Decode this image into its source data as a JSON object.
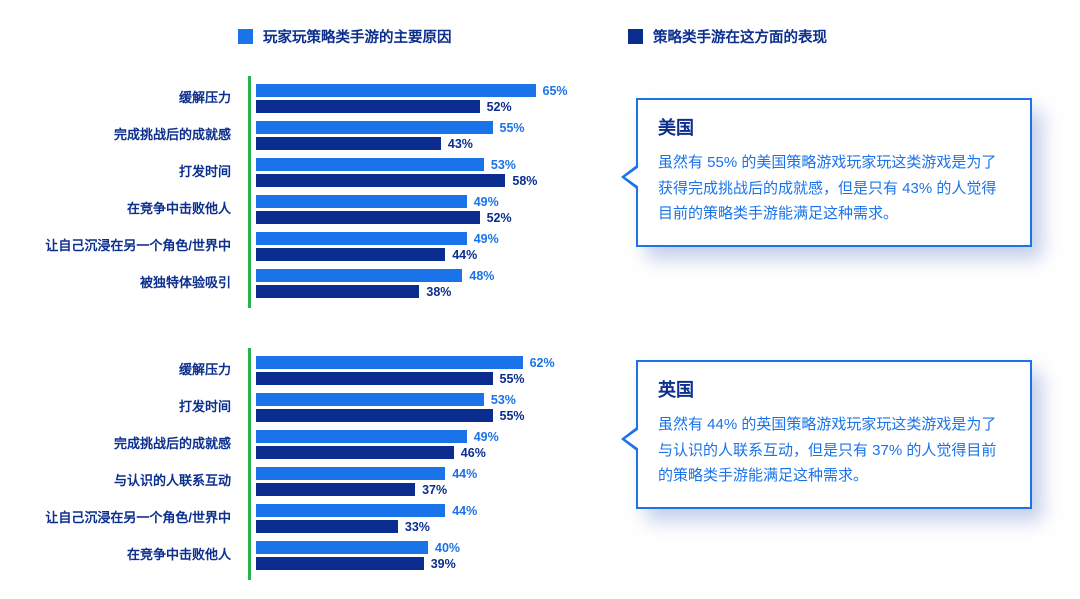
{
  "colors": {
    "reason_blue": "#1a73e8",
    "performance_blue": "#0b2d8f",
    "axis_green": "#27b24a"
  },
  "legend": {
    "items": [
      {
        "label": "玩家玩策略类手游的主要原因",
        "color": "#1a73e8"
      },
      {
        "label": "策略类手游在这方面的表现",
        "color": "#0b2d8f"
      }
    ]
  },
  "chart_data": [
    {
      "type": "bar",
      "region": "美国",
      "orientation": "horizontal",
      "categories": [
        "缓解压力",
        "完成挑战后的成就感",
        "打发时间",
        "在竞争中击败他人",
        "让自己沉浸在另一个角色/世界中",
        "被独特体验吸引"
      ],
      "series": [
        {
          "name": "玩家玩策略类手游的主要原因",
          "color": "#1a73e8",
          "values": [
            65,
            55,
            53,
            49,
            49,
            48
          ]
        },
        {
          "name": "策略类手游在这方面的表现",
          "color": "#0b2d8f",
          "values": [
            52,
            43,
            58,
            52,
            44,
            38
          ]
        }
      ],
      "xlim": [
        0,
        70
      ],
      "value_suffix": "%",
      "grid": false,
      "legend_position": "top"
    },
    {
      "type": "bar",
      "region": "英国",
      "orientation": "horizontal",
      "categories": [
        "缓解压力",
        "打发时间",
        "完成挑战后的成就感",
        "与认识的人联系互动",
        "让自己沉浸在另一个角色/世界中",
        "在竞争中击败他人"
      ],
      "series": [
        {
          "name": "玩家玩策略类手游的主要原因",
          "color": "#1a73e8",
          "values": [
            62,
            53,
            49,
            44,
            44,
            40
          ]
        },
        {
          "name": "策略类手游在这方面的表现",
          "color": "#0b2d8f",
          "values": [
            55,
            55,
            46,
            37,
            33,
            39
          ]
        }
      ],
      "xlim": [
        0,
        70
      ],
      "value_suffix": "%",
      "grid": false,
      "legend_position": "top"
    }
  ],
  "callouts": [
    {
      "title": "美国",
      "body": "虽然有 55% 的美国策略游戏玩家玩这类游戏是为了获得完成挑战后的成就感，但是只有 43% 的人觉得目前的策略类手游能满足这种需求。"
    },
    {
      "title": "英国",
      "body": "虽然有 44% 的英国策略游戏玩家玩这类游戏是为了与认识的人联系互动，但是只有 37% 的人觉得目前的策略类手游能满足这种需求。"
    }
  ]
}
